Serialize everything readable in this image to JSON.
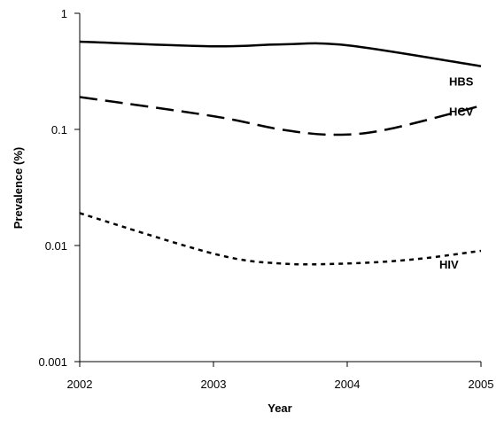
{
  "chart_data": {
    "type": "line",
    "title": "",
    "xlabel": "Year",
    "ylabel": "Prevalence (%)",
    "x": [
      2002,
      2003,
      2004,
      2005
    ],
    "xlim": [
      2002,
      2005
    ],
    "ylim": [
      0.001,
      1
    ],
    "yscale": "log",
    "y_ticks": [
      0.001,
      0.01,
      0.1,
      1
    ],
    "y_tick_labels": [
      "0.001",
      "0.01",
      "0.1",
      "1"
    ],
    "x_ticks": [
      2002,
      2003,
      2004,
      2005
    ],
    "x_tick_labels": [
      "2002",
      "2003",
      "2004",
      "2005"
    ],
    "grid": false,
    "legend": "none (series labeled directly on lines)",
    "series": [
      {
        "name": "HBS",
        "line_style": "solid",
        "color": "#000000",
        "x": [
          2002,
          2003,
          2003.5,
          2004,
          2005
        ],
        "y": [
          0.57,
          0.52,
          0.54,
          0.53,
          0.35
        ]
      },
      {
        "name": "HCV",
        "line_style": "long-dash",
        "color": "#000000",
        "x": [
          2002,
          2003,
          2003.5,
          2003.9,
          2004.3,
          2005
        ],
        "y": [
          0.19,
          0.13,
          0.1,
          0.09,
          0.1,
          0.16
        ]
      },
      {
        "name": "HIV",
        "line_style": "dotted",
        "color": "#000000",
        "x": [
          2002,
          2003,
          2003.5,
          2004,
          2004.5,
          2005
        ],
        "y": [
          0.019,
          0.0085,
          0.007,
          0.007,
          0.0076,
          0.009
        ]
      }
    ]
  }
}
